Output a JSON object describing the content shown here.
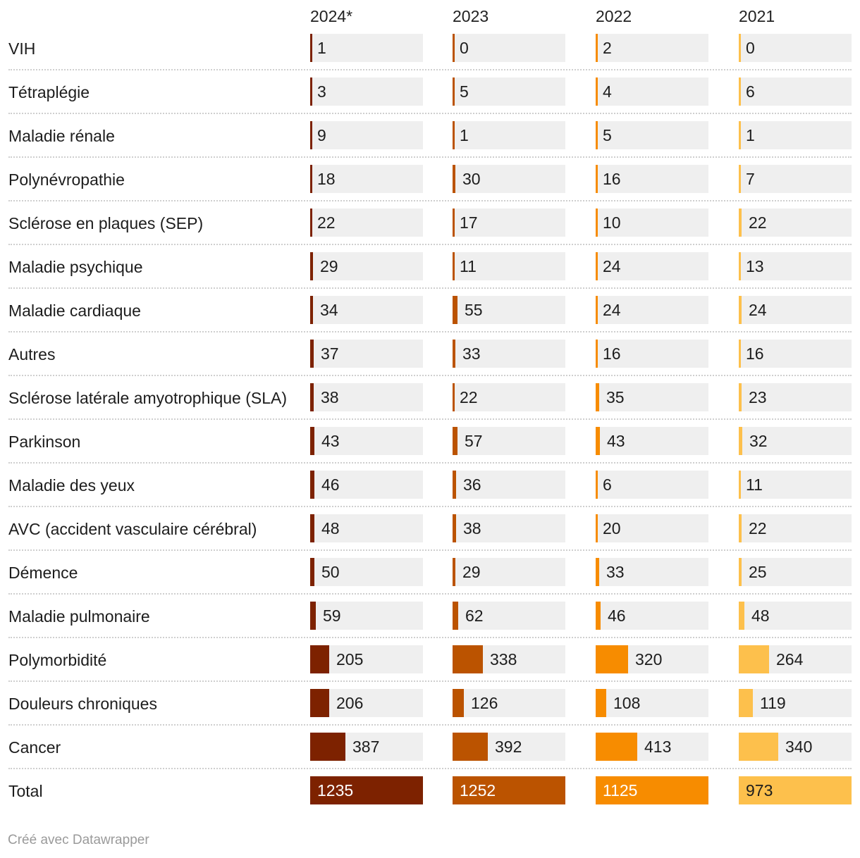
{
  "colors": {
    "2024*": "#7d2200",
    "2023": "#bb5300",
    "2022": "#f78c00",
    "2021": "#fdc04c"
  },
  "credit": "Créé avec Datawrapper",
  "chart_data": {
    "type": "table",
    "title": "",
    "columns": [
      "2024*",
      "2023",
      "2022",
      "2021"
    ],
    "rows": [
      {
        "label": "VIH",
        "values": [
          1,
          0,
          2,
          0
        ]
      },
      {
        "label": "Tétraplégie",
        "values": [
          3,
          5,
          4,
          6
        ]
      },
      {
        "label": "Maladie rénale",
        "values": [
          9,
          1,
          5,
          1
        ]
      },
      {
        "label": "Polynévropathie",
        "values": [
          18,
          30,
          16,
          7
        ]
      },
      {
        "label": "Sclérose en plaques (SEP)",
        "values": [
          22,
          17,
          10,
          22
        ]
      },
      {
        "label": "Maladie psychique",
        "values": [
          29,
          11,
          24,
          13
        ]
      },
      {
        "label": "Maladie cardiaque",
        "values": [
          34,
          55,
          24,
          24
        ]
      },
      {
        "label": "Autres",
        "values": [
          37,
          33,
          16,
          16
        ]
      },
      {
        "label": "Sclérose latérale amyotrophique (SLA)",
        "values": [
          38,
          22,
          35,
          23
        ]
      },
      {
        "label": "Parkinson",
        "values": [
          43,
          57,
          43,
          32
        ]
      },
      {
        "label": "Maladie des yeux",
        "values": [
          46,
          36,
          6,
          11
        ]
      },
      {
        "label": "AVC (accident vasculaire cérébral)",
        "values": [
          48,
          38,
          20,
          22
        ]
      },
      {
        "label": "Démence",
        "values": [
          50,
          29,
          33,
          25
        ]
      },
      {
        "label": "Maladie pulmonaire",
        "values": [
          59,
          62,
          46,
          48
        ]
      },
      {
        "label": "Polymorbidité",
        "values": [
          205,
          338,
          320,
          264
        ]
      },
      {
        "label": "Douleurs chroniques",
        "values": [
          206,
          126,
          108,
          119
        ]
      },
      {
        "label": "Cancer",
        "values": [
          387,
          392,
          413,
          340
        ]
      },
      {
        "label": "Total",
        "values": [
          1235,
          1252,
          1125,
          973
        ]
      }
    ],
    "axis_max": [
      1235,
      1252,
      1125,
      973
    ]
  }
}
